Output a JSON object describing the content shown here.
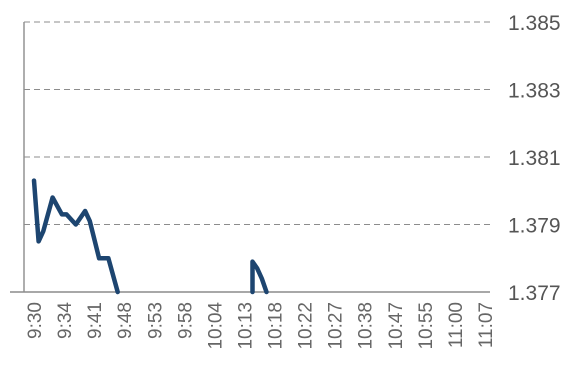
{
  "chart_data": {
    "type": "line",
    "title": "",
    "xlabel": "",
    "ylabel": "",
    "ylim": [
      1.377,
      1.385
    ],
    "y_axis_position": "right",
    "grid": true,
    "y_ticks": [
      "1.385",
      "1.383",
      "1.381",
      "1.379",
      "1.377"
    ],
    "x_tick_labels": [
      "9:30",
      "9:34",
      "9:41",
      "9:48",
      "9:53",
      "9:58",
      "10:04",
      "10:13",
      "10:18",
      "10:22",
      "10:27",
      "10:38",
      "10:47",
      "10:55",
      "11:00",
      "11:07"
    ],
    "series": [
      {
        "color": "#1d4570",
        "segments": [
          [
            {
              "x": "9:30",
              "y": 1.3803
            },
            {
              "x": "9:31",
              "y": 1.3785
            },
            {
              "x": "9:32",
              "y": 1.3788
            },
            {
              "x": "9:34",
              "y": 1.3798
            },
            {
              "x": "9:36",
              "y": 1.3793
            },
            {
              "x": "9:37",
              "y": 1.3793
            },
            {
              "x": "9:39",
              "y": 1.379
            },
            {
              "x": "9:41",
              "y": 1.3794
            },
            {
              "x": "9:42",
              "y": 1.3791
            },
            {
              "x": "9:44",
              "y": 1.378
            },
            {
              "x": "9:46",
              "y": 1.378
            },
            {
              "x": "9:48",
              "y": 1.377
            }
          ],
          [
            {
              "x": "10:17",
              "y": 1.377
            },
            {
              "x": "10:17",
              "y": 1.3779
            },
            {
              "x": "10:18",
              "y": 1.3777
            },
            {
              "x": "10:19",
              "y": 1.3774
            },
            {
              "x": "10:20",
              "y": 1.377
            }
          ]
        ]
      }
    ]
  }
}
